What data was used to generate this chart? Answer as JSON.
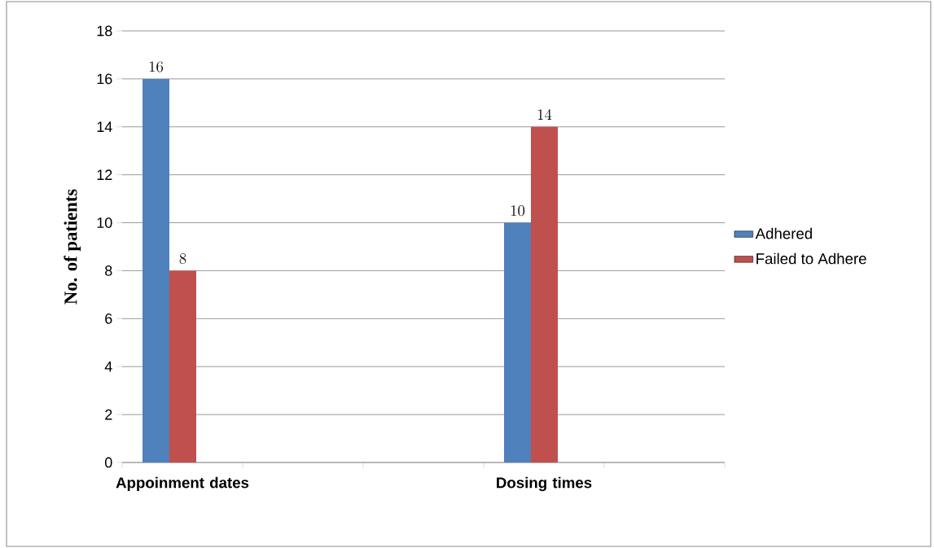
{
  "chart_data": {
    "type": "bar",
    "ylabel": "No. of patients",
    "categories": [
      "Appoinment dates",
      null,
      null,
      "Dosing times",
      null
    ],
    "series": [
      {
        "name": "Adhered",
        "color": "#4f81bd",
        "values": [
          16,
          null,
          null,
          10,
          null
        ]
      },
      {
        "name": "Failed to Adhere",
        "color": "#c0504d",
        "values": [
          8,
          null,
          null,
          14,
          null
        ]
      }
    ],
    "ylim": [
      0,
      18
    ],
    "yticks": [
      0,
      2,
      4,
      6,
      8,
      10,
      12,
      14,
      16,
      18
    ],
    "grid": "y",
    "legend": "right",
    "data_labels": true
  }
}
